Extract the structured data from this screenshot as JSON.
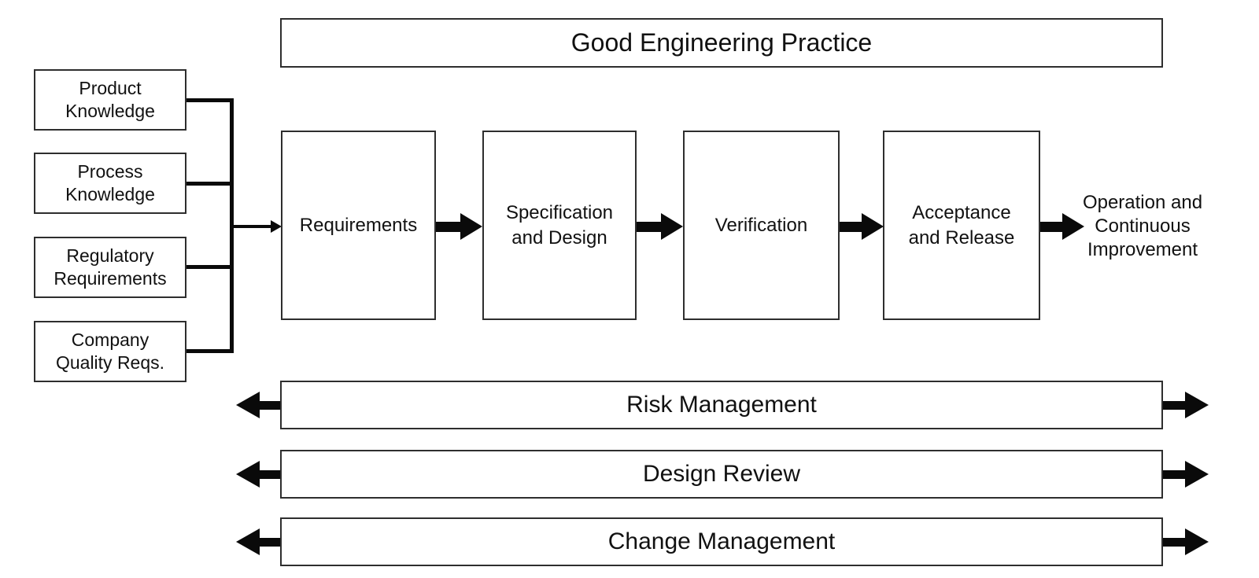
{
  "diagram": {
    "background": "#ffffff",
    "ink_color": "#0a0a0a",
    "border_color": "#2e2e2e",
    "top_banner": {
      "label": "Good Engineering Practice"
    },
    "inputs": [
      {
        "label": "Product\nKnowledge"
      },
      {
        "label": "Process\nKnowledge"
      },
      {
        "label": "Regulatory\nRequirements"
      },
      {
        "label": "Company\nQuality Reqs."
      }
    ],
    "phases": [
      {
        "label": "Requirements"
      },
      {
        "label": "Specification\nand Design"
      },
      {
        "label": "Verification"
      },
      {
        "label": "Acceptance\nand Release"
      }
    ],
    "outcome": {
      "label": "Operation and\nContinuous\nImprovement"
    },
    "support_banners": [
      {
        "label": "Risk Management"
      },
      {
        "label": "Design Review"
      },
      {
        "label": "Change Management"
      }
    ]
  }
}
